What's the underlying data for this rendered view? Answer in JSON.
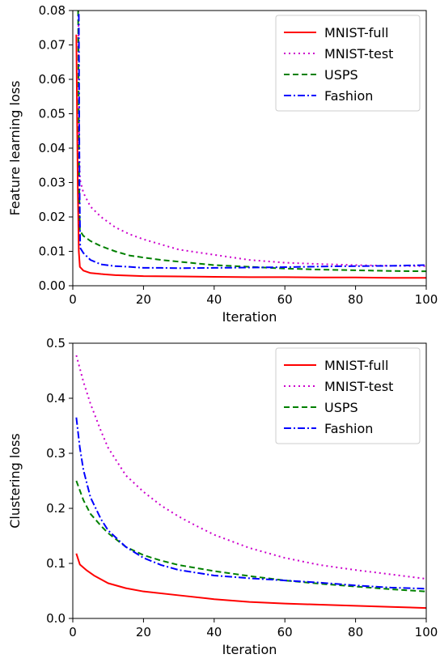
{
  "chart_data": [
    {
      "type": "line",
      "title": "",
      "xlabel": "Iteration",
      "ylabel": "Feature learning loss",
      "xlim": [
        0,
        100
      ],
      "ylim": [
        0,
        0.08
      ],
      "xticks": [
        0,
        20,
        40,
        60,
        80,
        100
      ],
      "yticks": [
        0.0,
        0.01,
        0.02,
        0.03,
        0.04,
        0.05,
        0.06,
        0.07,
        0.08
      ],
      "ytick_labels": [
        "0.00",
        "0.01",
        "0.02",
        "0.03",
        "0.04",
        "0.05",
        "0.06",
        "0.07",
        "0.08"
      ],
      "grid": false,
      "legend_position": "top-right",
      "series": [
        {
          "name": "MNIST-full",
          "color": "#ff0000",
          "style": "solid",
          "x": [
            1,
            1.4,
            1.7,
            2,
            3,
            5,
            8,
            12,
            20,
            30,
            40,
            50,
            60,
            70,
            80,
            90,
            100
          ],
          "y": [
            0.073,
            0.03,
            0.01,
            0.0055,
            0.0044,
            0.0037,
            0.0034,
            0.0031,
            0.0028,
            0.0027,
            0.0026,
            0.0025,
            0.0025,
            0.0024,
            0.0024,
            0.0023,
            0.0023
          ]
        },
        {
          "name": "MNIST-test",
          "color": "#cc00cc",
          "style": "dotted",
          "x": [
            1.6,
            1.8,
            2,
            3,
            5,
            8,
            12,
            16,
            20,
            25,
            30,
            40,
            50,
            60,
            70,
            80,
            90,
            100
          ],
          "y": [
            0.08,
            0.04,
            0.031,
            0.027,
            0.023,
            0.02,
            0.017,
            0.015,
            0.0135,
            0.012,
            0.0105,
            0.009,
            0.0075,
            0.0067,
            0.0063,
            0.006,
            0.0058,
            0.0057
          ]
        },
        {
          "name": "USPS",
          "color": "#008000",
          "style": "dashed",
          "x": [
            1.5,
            1.8,
            2,
            3,
            5,
            8,
            12,
            16,
            20,
            25,
            30,
            40,
            50,
            60,
            70,
            80,
            90,
            100
          ],
          "y": [
            0.08,
            0.03,
            0.016,
            0.0145,
            0.013,
            0.0115,
            0.01,
            0.0088,
            0.0082,
            0.0075,
            0.007,
            0.006,
            0.0055,
            0.005,
            0.0047,
            0.0045,
            0.0043,
            0.0042
          ]
        },
        {
          "name": "Fashion",
          "color": "#0000ff",
          "style": "dashdot",
          "x": [
            1.7,
            1.9,
            2.1,
            3,
            5,
            8,
            12,
            16,
            20,
            25,
            30,
            40,
            50,
            60,
            70,
            80,
            90,
            100
          ],
          "y": [
            0.079,
            0.03,
            0.011,
            0.0095,
            0.0075,
            0.0062,
            0.0057,
            0.0055,
            0.0052,
            0.0052,
            0.0051,
            0.0052,
            0.0053,
            0.0054,
            0.0056,
            0.0057,
            0.0058,
            0.006
          ]
        }
      ]
    },
    {
      "type": "line",
      "title": "",
      "xlabel": "Iteration",
      "ylabel": "Clustering loss",
      "xlim": [
        0,
        100
      ],
      "ylim": [
        0,
        0.5
      ],
      "xticks": [
        0,
        20,
        40,
        60,
        80,
        100
      ],
      "yticks": [
        0.0,
        0.1,
        0.2,
        0.3,
        0.4,
        0.5
      ],
      "ytick_labels": [
        "0.0",
        "0.1",
        "0.2",
        "0.3",
        "0.4",
        "0.5"
      ],
      "grid": false,
      "legend_position": "top-right",
      "series": [
        {
          "name": "MNIST-full",
          "color": "#ff0000",
          "style": "solid",
          "x": [
            1,
            2,
            4,
            6,
            8,
            10,
            15,
            20,
            30,
            40,
            50,
            60,
            70,
            80,
            90,
            100
          ],
          "y": [
            0.118,
            0.098,
            0.087,
            0.078,
            0.071,
            0.064,
            0.055,
            0.049,
            0.042,
            0.035,
            0.03,
            0.027,
            0.025,
            0.023,
            0.021,
            0.019
          ]
        },
        {
          "name": "MNIST-test",
          "color": "#cc00cc",
          "style": "dotted",
          "x": [
            1,
            3,
            5,
            8,
            10,
            15,
            20,
            25,
            30,
            35,
            40,
            50,
            60,
            70,
            80,
            90,
            100
          ],
          "y": [
            0.478,
            0.43,
            0.39,
            0.34,
            0.31,
            0.26,
            0.23,
            0.205,
            0.185,
            0.168,
            0.152,
            0.128,
            0.11,
            0.097,
            0.088,
            0.08,
            0.072
          ]
        },
        {
          "name": "USPS",
          "color": "#008000",
          "style": "dashed",
          "x": [
            1,
            3,
            5,
            8,
            10,
            15,
            20,
            25,
            30,
            40,
            50,
            60,
            70,
            80,
            90,
            100
          ],
          "y": [
            0.25,
            0.215,
            0.19,
            0.168,
            0.155,
            0.13,
            0.115,
            0.105,
            0.097,
            0.086,
            0.077,
            0.069,
            0.063,
            0.058,
            0.053,
            0.049
          ]
        },
        {
          "name": "Fashion",
          "color": "#0000ff",
          "style": "dashdot",
          "x": [
            1,
            2,
            3,
            5,
            8,
            10,
            15,
            20,
            25,
            30,
            40,
            50,
            60,
            70,
            80,
            90,
            100
          ],
          "y": [
            0.365,
            0.31,
            0.27,
            0.22,
            0.18,
            0.16,
            0.13,
            0.11,
            0.097,
            0.088,
            0.078,
            0.073,
            0.069,
            0.065,
            0.06,
            0.056,
            0.054
          ]
        }
      ]
    }
  ]
}
